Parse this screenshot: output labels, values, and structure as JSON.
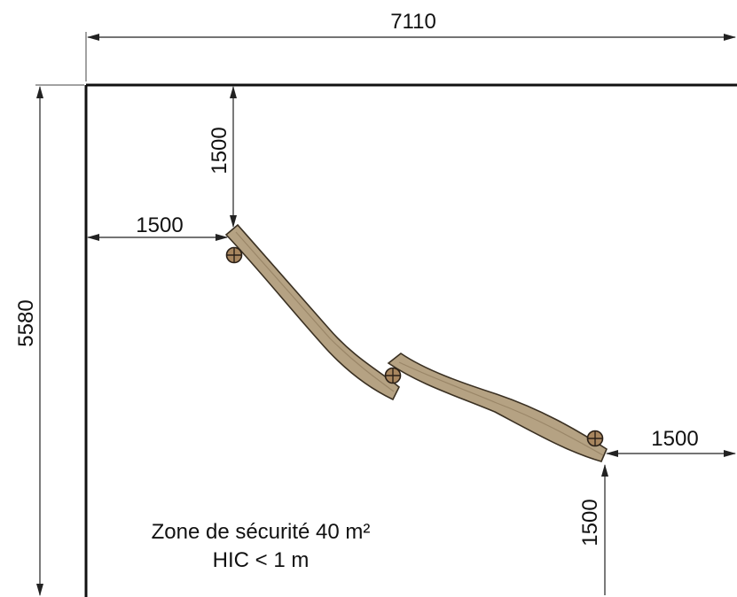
{
  "dimensions": {
    "total_width": "7110",
    "total_height": "5580",
    "top_clearance": "1500",
    "left_clearance": "1500",
    "right_clearance": "1500",
    "bottom_clearance": "1500"
  },
  "zone": {
    "line1": "Zone de sécurité 40 m²",
    "line2": "HIC < 1 m"
  },
  "colors": {
    "log_fill": "#b5a283",
    "log_outline": "#3a3022",
    "post_fill": "#a8865f",
    "line": "#111111"
  }
}
